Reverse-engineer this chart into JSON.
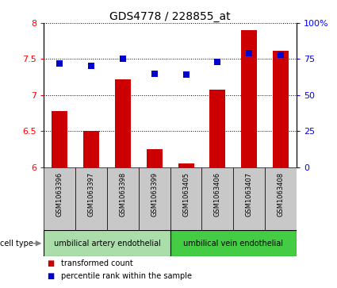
{
  "title": "GDS4778 / 228855_at",
  "samples": [
    "GSM1063396",
    "GSM1063397",
    "GSM1063398",
    "GSM1063399",
    "GSM1063405",
    "GSM1063406",
    "GSM1063407",
    "GSM1063408"
  ],
  "transformed_count": [
    6.78,
    6.5,
    7.22,
    6.25,
    6.05,
    7.08,
    7.9,
    7.62
  ],
  "percentile_rank": [
    72,
    70,
    75,
    65,
    64,
    73,
    79,
    78
  ],
  "ylim_left": [
    6.0,
    8.0
  ],
  "ylim_right": [
    0,
    100
  ],
  "yticks_left": [
    6.0,
    6.5,
    7.0,
    7.5,
    8.0
  ],
  "yticks_right": [
    0,
    25,
    50,
    75,
    100
  ],
  "ytick_labels_right": [
    "0",
    "25",
    "50",
    "75",
    "100%"
  ],
  "ytick_labels_left": [
    "6",
    "6.5",
    "7",
    "7.5",
    "8"
  ],
  "bar_color": "#cc0000",
  "dot_color": "#0000cc",
  "cell_types": [
    {
      "label": "umbilical artery endothelial",
      "start": 0,
      "end": 4,
      "color": "#aaddaa"
    },
    {
      "label": "umbilical vein endothelial",
      "start": 4,
      "end": 8,
      "color": "#44cc44"
    }
  ],
  "cell_type_label": "cell type",
  "legend_items": [
    {
      "color": "#cc0000",
      "label": "transformed count"
    },
    {
      "color": "#0000cc",
      "label": "percentile rank within the sample"
    }
  ],
  "bg_color": "#ffffff",
  "tick_area_color": "#c8c8c8",
  "bar_width": 0.5,
  "dot_size": 40
}
